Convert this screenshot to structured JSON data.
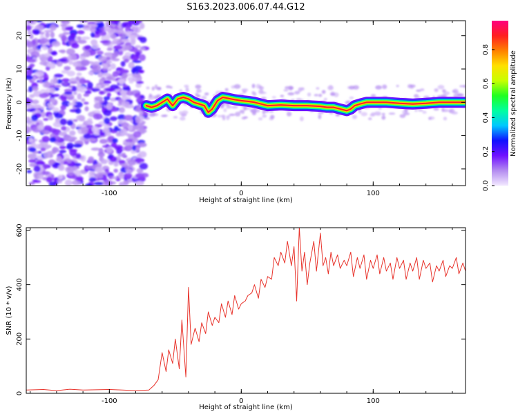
{
  "title": "S163.2023.006.07.44.G12",
  "chart_data": [
    {
      "type": "heatmap",
      "xlabel": "Height of straight line (km)",
      "ylabel": "Frequency (Hz)",
      "xlim": [
        -163,
        170
      ],
      "ylim": [
        -25,
        24.5
      ],
      "xticks": [
        -100,
        0,
        100
      ],
      "xtick_labels": [
        "-100",
        "0",
        "100"
      ],
      "yticks": [
        -20,
        -10,
        0,
        10,
        20
      ],
      "ytick_labels": [
        "-20",
        "-10",
        "0",
        "10",
        "20"
      ],
      "noise_region_x": [
        -163,
        -73
      ],
      "ridge": {
        "x": [
          -72,
          -68,
          -64,
          -60,
          -56,
          -52,
          -48,
          -44,
          -40,
          -36,
          -32,
          -28,
          -25,
          -22,
          -18,
          -14,
          -10,
          -5,
          0,
          5,
          10,
          15,
          20,
          30,
          40,
          50,
          60,
          65,
          70,
          75,
          80,
          83,
          86,
          90,
          95,
          100,
          110,
          120,
          130,
          140,
          150,
          160,
          170
        ],
        "y": [
          -1,
          -1.5,
          -1,
          0,
          1,
          -1,
          1,
          1.5,
          1,
          0,
          -0.5,
          -1,
          -3,
          -2,
          0.5,
          1.5,
          1.2,
          0.8,
          0.5,
          0.3,
          0,
          -0.5,
          -1,
          -0.8,
          -1,
          -1,
          -1.2,
          -1.5,
          -1.5,
          -2,
          -2.5,
          -2,
          -1,
          -0.5,
          0,
          0,
          0,
          -0.3,
          -0.5,
          -0.3,
          0,
          0,
          0
        ]
      },
      "colorbar": {
        "label": "Normalized spectral amplitude",
        "range": [
          0,
          0.97
        ],
        "ticks": [
          0.0,
          0.2,
          0.4,
          0.6,
          0.8
        ],
        "tick_labels": [
          "0.0",
          "0.2",
          "0.4",
          "0.6",
          "0.8"
        ],
        "colors": [
          "#f2e8ff",
          "#b48cf0",
          "#7010ff",
          "#1010ff",
          "#00c8ff",
          "#00ffa0",
          "#20ff20",
          "#c8ff00",
          "#ffe000",
          "#ff8000",
          "#ff2020",
          "#ff0080"
        ]
      }
    },
    {
      "type": "line",
      "xlabel": "Height of straight line (km)",
      "ylabel": "SNR (10 * v/v)",
      "xlim": [
        -163,
        170
      ],
      "ylim": [
        0,
        610
      ],
      "xticks": [
        -100,
        0,
        100
      ],
      "xtick_labels": [
        "-100",
        "0",
        "100"
      ],
      "yticks": [
        0,
        200,
        400,
        600
      ],
      "ytick_labels": [
        "0",
        "200",
        "400",
        "600"
      ],
      "color": "#e8322a",
      "series": [
        {
          "x": [
            -163,
            -150,
            -140,
            -130,
            -120,
            -110,
            -100,
            -90,
            -80,
            -70,
            -66,
            -63,
            -60,
            -57,
            -55,
            -52,
            -50,
            -47,
            -45,
            -42,
            -40,
            -38,
            -35,
            -32,
            -30,
            -27,
            -25,
            -22,
            -20,
            -17,
            -15,
            -12,
            -10,
            -7,
            -5,
            -2,
            0,
            3,
            5,
            8,
            10,
            13,
            15,
            18,
            20,
            23,
            25,
            28,
            30,
            33,
            35,
            38,
            40,
            42,
            44,
            46,
            48,
            50,
            52,
            55,
            57,
            60,
            62,
            64,
            66,
            68,
            70,
            73,
            75,
            78,
            80,
            83,
            85,
            88,
            90,
            93,
            95,
            98,
            100,
            103,
            105,
            108,
            110,
            113,
            115,
            118,
            120,
            123,
            125,
            128,
            130,
            133,
            135,
            138,
            140,
            143,
            145,
            148,
            150,
            153,
            155,
            158,
            160,
            163,
            165,
            168,
            170
          ],
          "y": [
            12,
            14,
            10,
            15,
            12,
            13,
            14,
            12,
            10,
            12,
            30,
            50,
            150,
            80,
            160,
            110,
            200,
            90,
            270,
            60,
            390,
            180,
            240,
            190,
            260,
            220,
            300,
            250,
            280,
            260,
            330,
            280,
            340,
            290,
            360,
            310,
            330,
            340,
            360,
            370,
            400,
            350,
            420,
            390,
            430,
            420,
            500,
            470,
            520,
            480,
            560,
            470,
            540,
            340,
            610,
            450,
            520,
            400,
            480,
            560,
            450,
            590,
            470,
            500,
            440,
            520,
            470,
            510,
            460,
            490,
            470,
            520,
            430,
            500,
            460,
            510,
            420,
            490,
            460,
            510,
            440,
            500,
            450,
            480,
            420,
            500,
            460,
            490,
            420,
            480,
            450,
            500,
            420,
            490,
            460,
            480,
            410,
            470,
            450,
            490,
            430,
            470,
            460,
            500,
            440,
            480,
            450
          ]
        }
      ]
    }
  ]
}
